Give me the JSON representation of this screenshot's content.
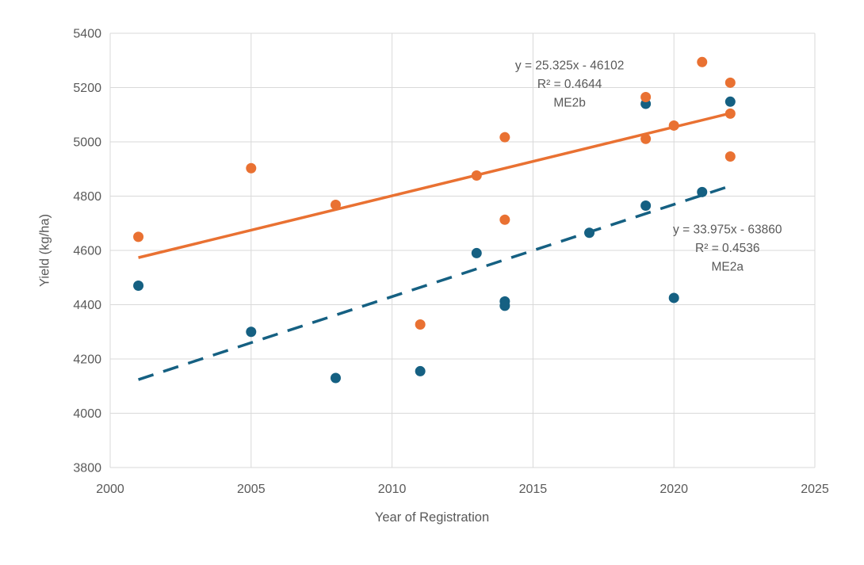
{
  "page": {
    "background": "#FFFFFF"
  },
  "chart_data": {
    "type": "scatter",
    "title": "",
    "xlabel": "Year of Registration",
    "ylabel": "Yield (kg/ha)",
    "xlim": [
      2000,
      2025
    ],
    "ylim": [
      3800,
      5400
    ],
    "x_ticks": [
      "2000",
      "2005",
      "2010",
      "2015",
      "2020",
      "2025"
    ],
    "y_ticks": [
      "3800",
      "4000",
      "4200",
      "4400",
      "4600",
      "4800",
      "5000",
      "5200",
      "5400"
    ],
    "grid": true,
    "legend": "none",
    "colors": {
      "grid": "#D9D9D9",
      "axis_text": "#595959",
      "annotation_text": "#595959",
      "series_me2a": "#156082",
      "series_me2b": "#E97132"
    },
    "series": [
      {
        "name": "ME2a",
        "color": "#156082",
        "marker": "circle",
        "points": [
          [
            2001,
            4470
          ],
          [
            2005,
            4300
          ],
          [
            2008,
            4130
          ],
          [
            2011,
            4155
          ],
          [
            2013,
            4590
          ],
          [
            2014,
            4412
          ],
          [
            2014,
            4396
          ],
          [
            2017,
            4665
          ],
          [
            2019,
            4765
          ],
          [
            2019,
            5140
          ],
          [
            2020,
            4425
          ],
          [
            2021,
            4815
          ],
          [
            2022,
            5148
          ]
        ],
        "trendline": {
          "style": "dashed",
          "slope": 33.975,
          "intercept": -63860,
          "x_start": 2001,
          "x_end": 2022
        },
        "annotation": {
          "lines": [
            "y = 33.975x - 63860",
            "R² = 0.4536",
            "ME2a"
          ],
          "anchor_x": 2021.9,
          "anchor_y": 4678
        }
      },
      {
        "name": "ME2b",
        "color": "#E97132",
        "marker": "circle",
        "points": [
          [
            2001,
            4650
          ],
          [
            2005,
            4903
          ],
          [
            2008,
            4768
          ],
          [
            2011,
            4327
          ],
          [
            2013,
            4876
          ],
          [
            2014,
            5017
          ],
          [
            2014,
            4713
          ],
          [
            2019,
            5165
          ],
          [
            2019,
            5011
          ],
          [
            2020,
            5060
          ],
          [
            2021,
            5294
          ],
          [
            2022,
            5218
          ],
          [
            2022,
            5104
          ],
          [
            2022,
            4946
          ]
        ],
        "trendline": {
          "style": "solid",
          "slope": 25.325,
          "intercept": -46102,
          "x_start": 2001,
          "x_end": 2022
        },
        "annotation": {
          "lines": [
            "y = 25.325x - 46102",
            "R² = 0.4644",
            "ME2b"
          ],
          "anchor_x": 2016.3,
          "anchor_y": 5282
        }
      }
    ]
  }
}
